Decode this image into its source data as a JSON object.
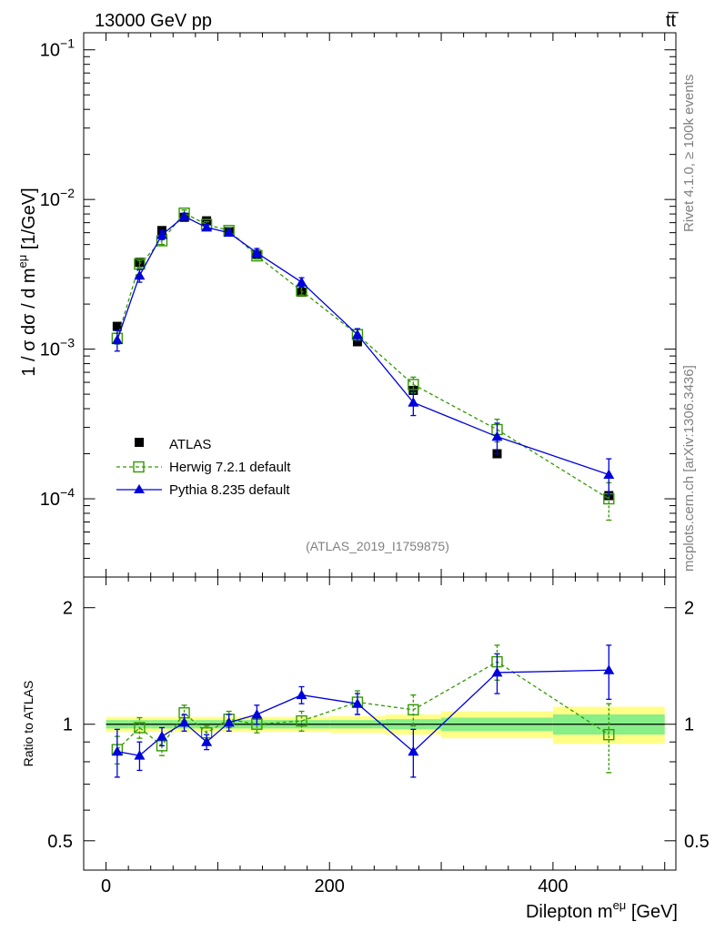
{
  "header": {
    "energy": "13000 GeV pp",
    "process": "tt̅"
  },
  "side": {
    "rivet": "Rivet 4.1.0, ≥ 100k events",
    "source": "mcplots.cern.ch [arXiv:1306.3436]"
  },
  "chart_data": [
    {
      "type": "scatter",
      "title": "",
      "analysis": "(ATLAS_2019_I1759875)",
      "ylabel": "1 / σ  dσ / d m",
      "ylabel_sup": "eμ",
      "ylabel_unit": " [1/GeV]",
      "yscale": "log",
      "ylim": [
        3e-05,
        0.13
      ],
      "xlim": [
        -20,
        510
      ],
      "ytick_labels": [
        {
          "base": "10",
          "exp": "−1",
          "value": 0.1
        },
        {
          "base": "10",
          "exp": "−2",
          "value": 0.01
        },
        {
          "base": "10",
          "exp": "−3",
          "value": 0.001
        },
        {
          "base": "10",
          "exp": "−4",
          "value": 0.0001
        }
      ],
      "x": [
        10,
        30,
        50,
        70,
        90,
        110,
        135,
        175,
        225,
        275,
        350,
        450
      ],
      "series": [
        {
          "name": "ATLAS",
          "color": "#000000",
          "marker": "square-filled",
          "values": [
            0.00142,
            0.0038,
            0.0062,
            0.0076,
            0.0072,
            0.0061,
            0.0043,
            0.0024,
            0.00112,
            0.00053,
            0.0002,
            0.000105
          ]
        },
        {
          "name": "Herwig 7.2.1 default",
          "color": "#339900",
          "marker": "square-open",
          "line": "dashed",
          "values": [
            0.00118,
            0.0037,
            0.0053,
            0.0081,
            0.0068,
            0.0062,
            0.0042,
            0.00245,
            0.00125,
            0.00058,
            0.00029,
            0.0001
          ],
          "err_low": [
            0.0001,
            0.0002,
            0.0003,
            0.0004,
            0.0003,
            0.0003,
            0.0002,
            0.00015,
            0.0001,
            7e-05,
            5e-05,
            2.8e-05
          ],
          "err_high": [
            0.0001,
            0.0002,
            0.0003,
            0.0004,
            0.0003,
            0.0003,
            0.0002,
            0.00015,
            0.0001,
            7e-05,
            5e-05,
            2.8e-05
          ]
        },
        {
          "name": "Pythia 8.235 default",
          "color": "#0000dd",
          "marker": "triangle-filled",
          "line": "solid",
          "values": [
            0.00115,
            0.0031,
            0.0058,
            0.0077,
            0.0065,
            0.006,
            0.0044,
            0.0028,
            0.00125,
            0.00044,
            0.00026,
            0.000145
          ],
          "err_low": [
            0.00018,
            0.0003,
            0.0004,
            0.0004,
            0.0003,
            0.0003,
            0.0003,
            0.0002,
            0.00012,
            8e-05,
            6e-05,
            4e-05
          ],
          "err_high": [
            0.00018,
            0.0003,
            0.0004,
            0.0004,
            0.0003,
            0.0003,
            0.0003,
            0.0002,
            0.00012,
            8e-05,
            6e-05,
            4e-05
          ]
        }
      ]
    },
    {
      "type": "scatter",
      "ylabel": "Ratio to ATLAS",
      "xlabel": "Dilepton m",
      "xlabel_sup": "eμ",
      "xlabel_unit": " [GeV]",
      "yscale": "log",
      "ylim": [
        0.42,
        2.4
      ],
      "xlim": [
        -20,
        510
      ],
      "ytick_labels": [
        {
          "label": "2",
          "value": 2
        },
        {
          "label": "1",
          "value": 1
        },
        {
          "label": "0.5",
          "value": 0.5
        }
      ],
      "xtick_labels": [
        {
          "label": "0",
          "value": 0
        },
        {
          "label": "200",
          "value": 200
        },
        {
          "label": "400",
          "value": 400
        }
      ],
      "x": [
        10,
        30,
        50,
        70,
        90,
        110,
        135,
        175,
        225,
        275,
        350,
        450
      ],
      "band_edges": [
        0,
        20,
        40,
        60,
        80,
        100,
        120,
        150,
        200,
        250,
        300,
        400,
        500
      ],
      "band_inner": [
        0.025,
        0.025,
        0.025,
        0.025,
        0.025,
        0.025,
        0.025,
        0.025,
        0.025,
        0.03,
        0.04,
        0.06
      ],
      "band_outer": [
        0.045,
        0.045,
        0.045,
        0.045,
        0.045,
        0.045,
        0.045,
        0.045,
        0.05,
        0.06,
        0.08,
        0.11
      ],
      "series": [
        {
          "name": "Herwig 7.2.1 default",
          "color": "#339900",
          "marker": "square-open",
          "line": "dashed",
          "values": [
            0.86,
            0.98,
            0.88,
            1.07,
            0.95,
            1.03,
            1.0,
            1.02,
            1.14,
            1.09,
            1.45,
            0.94
          ],
          "err_low": [
            0.07,
            0.06,
            0.05,
            0.05,
            0.04,
            0.05,
            0.05,
            0.06,
            0.08,
            0.1,
            0.15,
            0.19
          ],
          "err_high": [
            0.07,
            0.06,
            0.05,
            0.05,
            0.04,
            0.05,
            0.05,
            0.06,
            0.08,
            0.1,
            0.15,
            0.19
          ]
        },
        {
          "name": "Pythia 8.235 default",
          "color": "#0000dd",
          "marker": "triangle-filled",
          "line": "solid",
          "values": [
            0.85,
            0.83,
            0.93,
            1.01,
            0.9,
            1.01,
            1.06,
            1.19,
            1.13,
            0.85,
            1.36,
            1.38
          ],
          "err_low": [
            0.12,
            0.07,
            0.05,
            0.05,
            0.04,
            0.05,
            0.06,
            0.06,
            0.07,
            0.12,
            0.16,
            0.22
          ],
          "err_high": [
            0.12,
            0.07,
            0.05,
            0.05,
            0.04,
            0.05,
            0.06,
            0.06,
            0.07,
            0.12,
            0.16,
            0.22
          ]
        }
      ]
    }
  ]
}
